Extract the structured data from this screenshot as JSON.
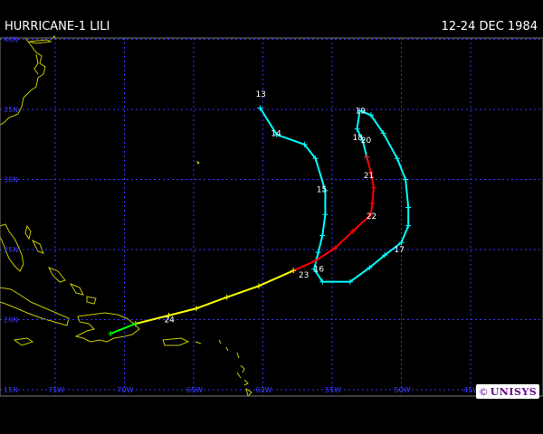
{
  "header": {
    "title": "HURRICANE-1 LILI",
    "dates": "12-24 DEC 1984"
  },
  "map": {
    "lat_labels": [
      "40N",
      "35N",
      "30N",
      "25N",
      "20N",
      "15N"
    ],
    "lon_labels": [
      "75W",
      "70W",
      "65W",
      "60W",
      "55W",
      "50W",
      "45W"
    ],
    "colors": {
      "background": "#000000",
      "grid": "#3333ff",
      "coastline": "#c8c800",
      "storm": "#00ffff",
      "hurricane_cat1": "#ff0000",
      "tropical_storm": "#ffff00",
      "depression": "#00ff00"
    },
    "day_labels": [
      {
        "text": "13",
        "lat": 36.1,
        "lon": 60.2
      },
      {
        "text": "14",
        "lat": 33.3,
        "lon": 59.1
      },
      {
        "text": "15",
        "lat": 29.3,
        "lon": 55.8
      },
      {
        "text": "16",
        "lat": 23.6,
        "lon": 56.0
      },
      {
        "text": "17",
        "lat": 25.0,
        "lon": 50.2
      },
      {
        "text": "18",
        "lat": 33.0,
        "lon": 53.2
      },
      {
        "text": "19",
        "lat": 34.9,
        "lon": 53.0
      },
      {
        "text": "20",
        "lat": 32.8,
        "lon": 52.6
      },
      {
        "text": "21",
        "lat": 30.3,
        "lon": 52.4
      },
      {
        "text": "22",
        "lat": 27.4,
        "lon": 52.2
      },
      {
        "text": "23",
        "lat": 23.2,
        "lon": 57.1
      },
      {
        "text": "24",
        "lat": 20.0,
        "lon": 66.8
      }
    ],
    "track": [
      {
        "segment": "storm",
        "points": [
          [
            35.1,
            60.2
          ],
          [
            33.2,
            59.0
          ],
          [
            32.5,
            57.0
          ],
          [
            31.5,
            56.2
          ],
          [
            29.2,
            55.5
          ],
          [
            27.5,
            55.5
          ],
          [
            26.0,
            55.7
          ],
          [
            24.8,
            56.0
          ],
          [
            23.6,
            56.3
          ],
          [
            22.7,
            55.7
          ],
          [
            22.7,
            53.7
          ],
          [
            23.7,
            52.3
          ],
          [
            24.6,
            51.2
          ],
          [
            25.5,
            50.0
          ],
          [
            26.7,
            49.5
          ],
          [
            28.0,
            49.5
          ],
          [
            30.0,
            49.7
          ],
          [
            31.5,
            50.3
          ],
          [
            33.3,
            51.3
          ],
          [
            34.6,
            52.2
          ],
          [
            34.9,
            53.0
          ],
          [
            33.6,
            53.2
          ],
          [
            32.8,
            52.8
          ],
          [
            31.6,
            52.5
          ]
        ]
      },
      {
        "segment": "hurricane",
        "points": [
          [
            31.6,
            52.5
          ],
          [
            30.5,
            52.2
          ],
          [
            29.4,
            52.0
          ],
          [
            28.3,
            52.1
          ],
          [
            27.5,
            52.2
          ],
          [
            26.3,
            53.5
          ],
          [
            25.1,
            54.8
          ],
          [
            24.2,
            56.2
          ],
          [
            23.5,
            57.8
          ]
        ]
      },
      {
        "segment": "tropical-storm",
        "points": [
          [
            23.5,
            57.8
          ],
          [
            22.4,
            60.3
          ],
          [
            21.6,
            62.6
          ],
          [
            20.8,
            64.8
          ],
          [
            20.3,
            66.8
          ],
          [
            19.7,
            69.2
          ]
        ]
      },
      {
        "segment": "depression",
        "points": [
          [
            19.7,
            69.2
          ],
          [
            19.0,
            71.0
          ]
        ]
      }
    ]
  },
  "logo": {
    "copyright": "©",
    "brand": "UNISYS"
  }
}
